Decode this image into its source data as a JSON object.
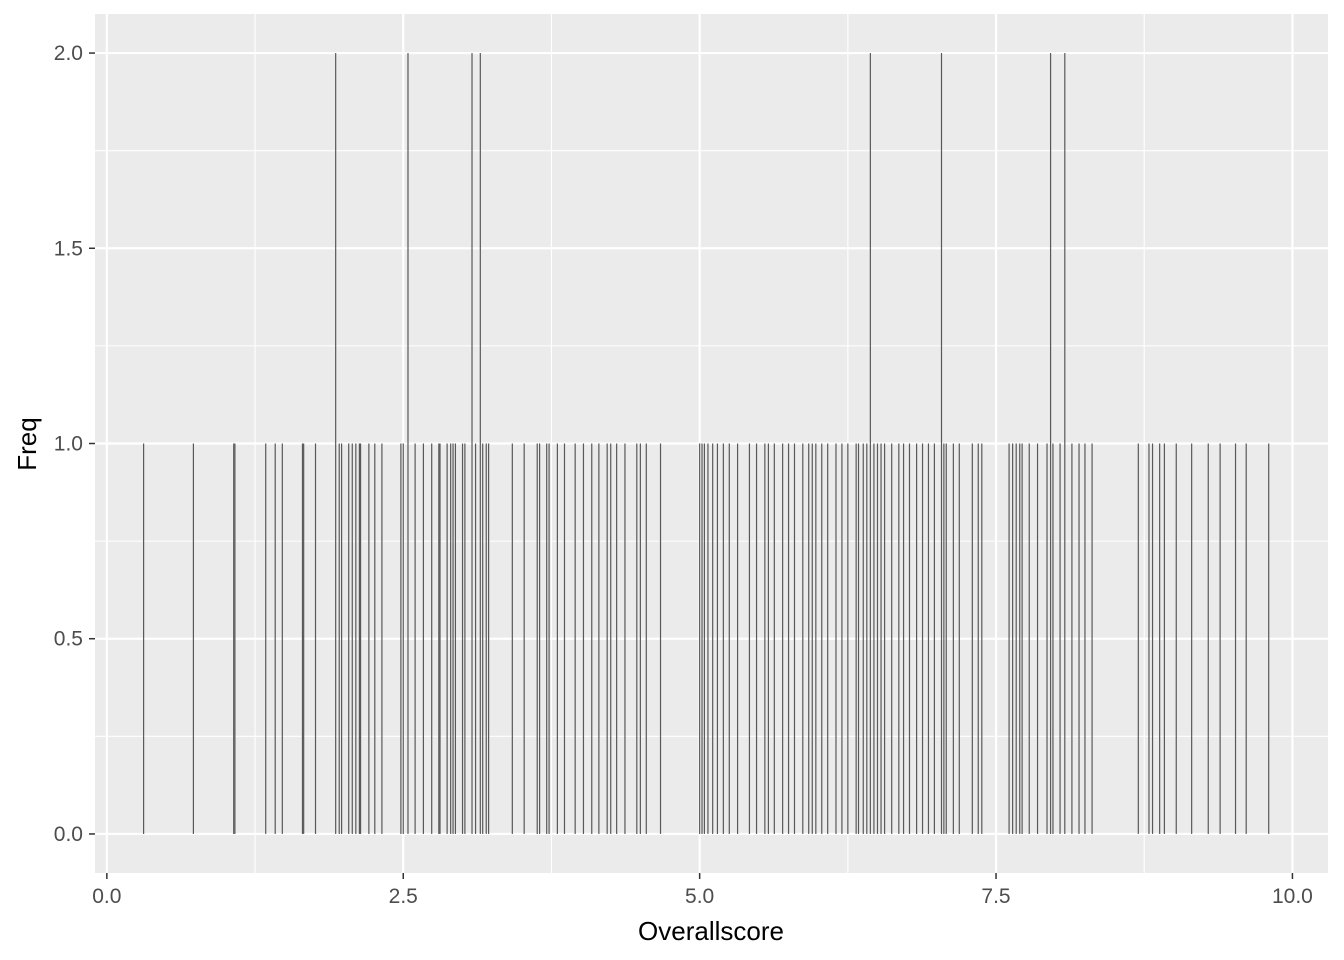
{
  "chart_data": {
    "type": "bar",
    "title": "",
    "xlabel": "Overallscore",
    "ylabel": "Freq",
    "xlim": [
      -0.1,
      10.3
    ],
    "ylim": [
      -0.1,
      2.1
    ],
    "grid": true,
    "x_ticks": [
      {
        "value": 0.0,
        "label": "0.0"
      },
      {
        "value": 2.5,
        "label": "2.5"
      },
      {
        "value": 5.0,
        "label": "5.0"
      },
      {
        "value": 7.5,
        "label": "7.5"
      },
      {
        "value": 10.0,
        "label": "10.0"
      }
    ],
    "y_ticks": [
      {
        "value": 0.0,
        "label": "0.0"
      },
      {
        "value": 0.5,
        "label": "0.5"
      },
      {
        "value": 1.0,
        "label": "1.0"
      },
      {
        "value": 1.5,
        "label": "1.5"
      },
      {
        "value": 2.0,
        "label": "2.0"
      }
    ],
    "colors": {
      "panel": "#ebebeb",
      "grid": "#ffffff",
      "bar": "#595959",
      "tick": "#333333"
    },
    "x": [
      0.31,
      0.73,
      1.07,
      1.08,
      1.34,
      1.42,
      1.48,
      1.65,
      1.66,
      1.76,
      1.93,
      1.96,
      1.98,
      2.04,
      2.07,
      2.1,
      2.13,
      2.14,
      2.21,
      2.26,
      2.32,
      2.48,
      2.5,
      2.54,
      2.6,
      2.67,
      2.74,
      2.8,
      2.81,
      2.87,
      2.9,
      2.92,
      2.94,
      3.0,
      3.02,
      3.08,
      3.11,
      3.15,
      3.17,
      3.2,
      3.22,
      3.42,
      3.52,
      3.63,
      3.65,
      3.71,
      3.73,
      3.8,
      3.86,
      3.95,
      4.02,
      4.09,
      4.15,
      4.22,
      4.25,
      4.3,
      4.37,
      4.47,
      4.5,
      4.55,
      4.67,
      5.0,
      5.02,
      5.04,
      5.07,
      5.11,
      5.15,
      5.2,
      5.25,
      5.32,
      5.42,
      5.48,
      5.55,
      5.58,
      5.63,
      5.7,
      5.75,
      5.8,
      5.87,
      5.92,
      5.95,
      5.98,
      6.03,
      6.08,
      6.15,
      6.2,
      6.25,
      6.32,
      6.34,
      6.38,
      6.41,
      6.44,
      6.47,
      6.5,
      6.53,
      6.56,
      6.62,
      6.68,
      6.72,
      6.77,
      6.83,
      6.88,
      6.93,
      6.98,
      7.04,
      7.06,
      7.08,
      7.14,
      7.19,
      7.3,
      7.35,
      7.38,
      7.61,
      7.64,
      7.67,
      7.7,
      7.72,
      7.78,
      7.85,
      7.93,
      7.96,
      7.98,
      8.04,
      8.08,
      8.14,
      8.2,
      8.25,
      8.31,
      8.7,
      8.79,
      8.82,
      8.88,
      8.92,
      9.02,
      9.15,
      9.29,
      9.39,
      9.52,
      9.61,
      9.8
    ],
    "values": [
      1,
      1,
      1,
      1,
      1,
      1,
      1,
      1,
      1,
      1,
      2,
      1,
      1,
      1,
      1,
      1,
      1,
      1,
      1,
      1,
      1,
      1,
      1,
      2,
      1,
      1,
      1,
      1,
      1,
      1,
      1,
      1,
      1,
      1,
      1,
      2,
      1,
      2,
      1,
      1,
      1,
      1,
      1,
      1,
      1,
      1,
      1,
      1,
      1,
      1,
      1,
      1,
      1,
      1,
      1,
      1,
      1,
      1,
      1,
      1,
      1,
      1,
      1,
      1,
      1,
      1,
      1,
      1,
      1,
      1,
      1,
      1,
      1,
      1,
      1,
      1,
      1,
      1,
      1,
      1,
      1,
      1,
      1,
      1,
      1,
      1,
      1,
      1,
      1,
      1,
      1,
      2,
      1,
      1,
      1,
      1,
      1,
      1,
      1,
      1,
      1,
      1,
      1,
      1,
      2,
      1,
      1,
      1,
      1,
      1,
      1,
      1,
      1,
      1,
      1,
      1,
      1,
      1,
      1,
      1,
      2,
      1,
      1,
      2,
      1,
      1,
      1,
      1,
      1,
      1,
      1,
      1,
      1,
      1,
      1,
      1,
      1,
      1,
      1,
      1
    ]
  }
}
